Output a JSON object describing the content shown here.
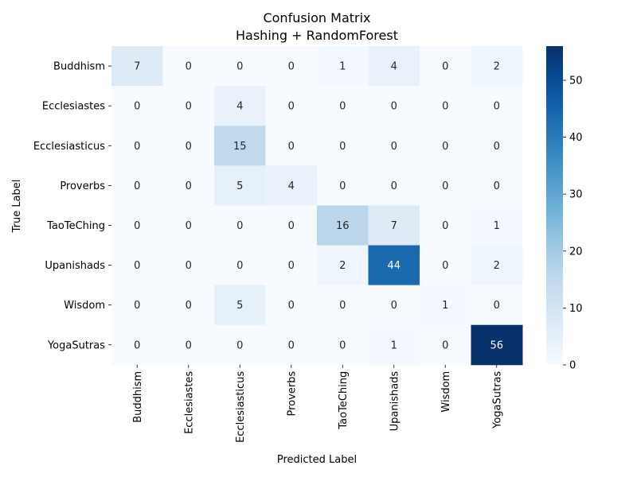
{
  "chart_data": {
    "type": "heatmap",
    "title": "Confusion Matrix",
    "subtitle": "Hashing + RandomForest",
    "xlabel": "Predicted Label",
    "ylabel": "True Label",
    "row_labels": [
      "Buddhism",
      "Ecclesiastes",
      "Ecclesiasticus",
      "Proverbs",
      "TaoTeChing",
      "Upanishads",
      "Wisdom",
      "YogaSutras"
    ],
    "col_labels": [
      "Buddhism",
      "Ecclesiastes",
      "Ecclesiasticus",
      "Proverbs",
      "TaoTeChing",
      "Upanishads",
      "Wisdom",
      "YogaSutras"
    ],
    "values": [
      [
        7,
        0,
        0,
        0,
        1,
        4,
        0,
        2
      ],
      [
        0,
        0,
        4,
        0,
        0,
        0,
        0,
        0
      ],
      [
        0,
        0,
        15,
        0,
        0,
        0,
        0,
        0
      ],
      [
        0,
        0,
        5,
        4,
        0,
        0,
        0,
        0
      ],
      [
        0,
        0,
        0,
        0,
        16,
        7,
        0,
        1
      ],
      [
        0,
        0,
        0,
        0,
        2,
        44,
        0,
        2
      ],
      [
        0,
        0,
        5,
        0,
        0,
        0,
        1,
        0
      ],
      [
        0,
        0,
        0,
        0,
        0,
        1,
        0,
        56
      ]
    ],
    "colormap": "Blues",
    "colorbar": {
      "min": 0,
      "max": 56,
      "ticks": [
        0,
        10,
        20,
        30,
        40,
        50
      ]
    },
    "grid": false,
    "legend": "colorbar-right"
  }
}
